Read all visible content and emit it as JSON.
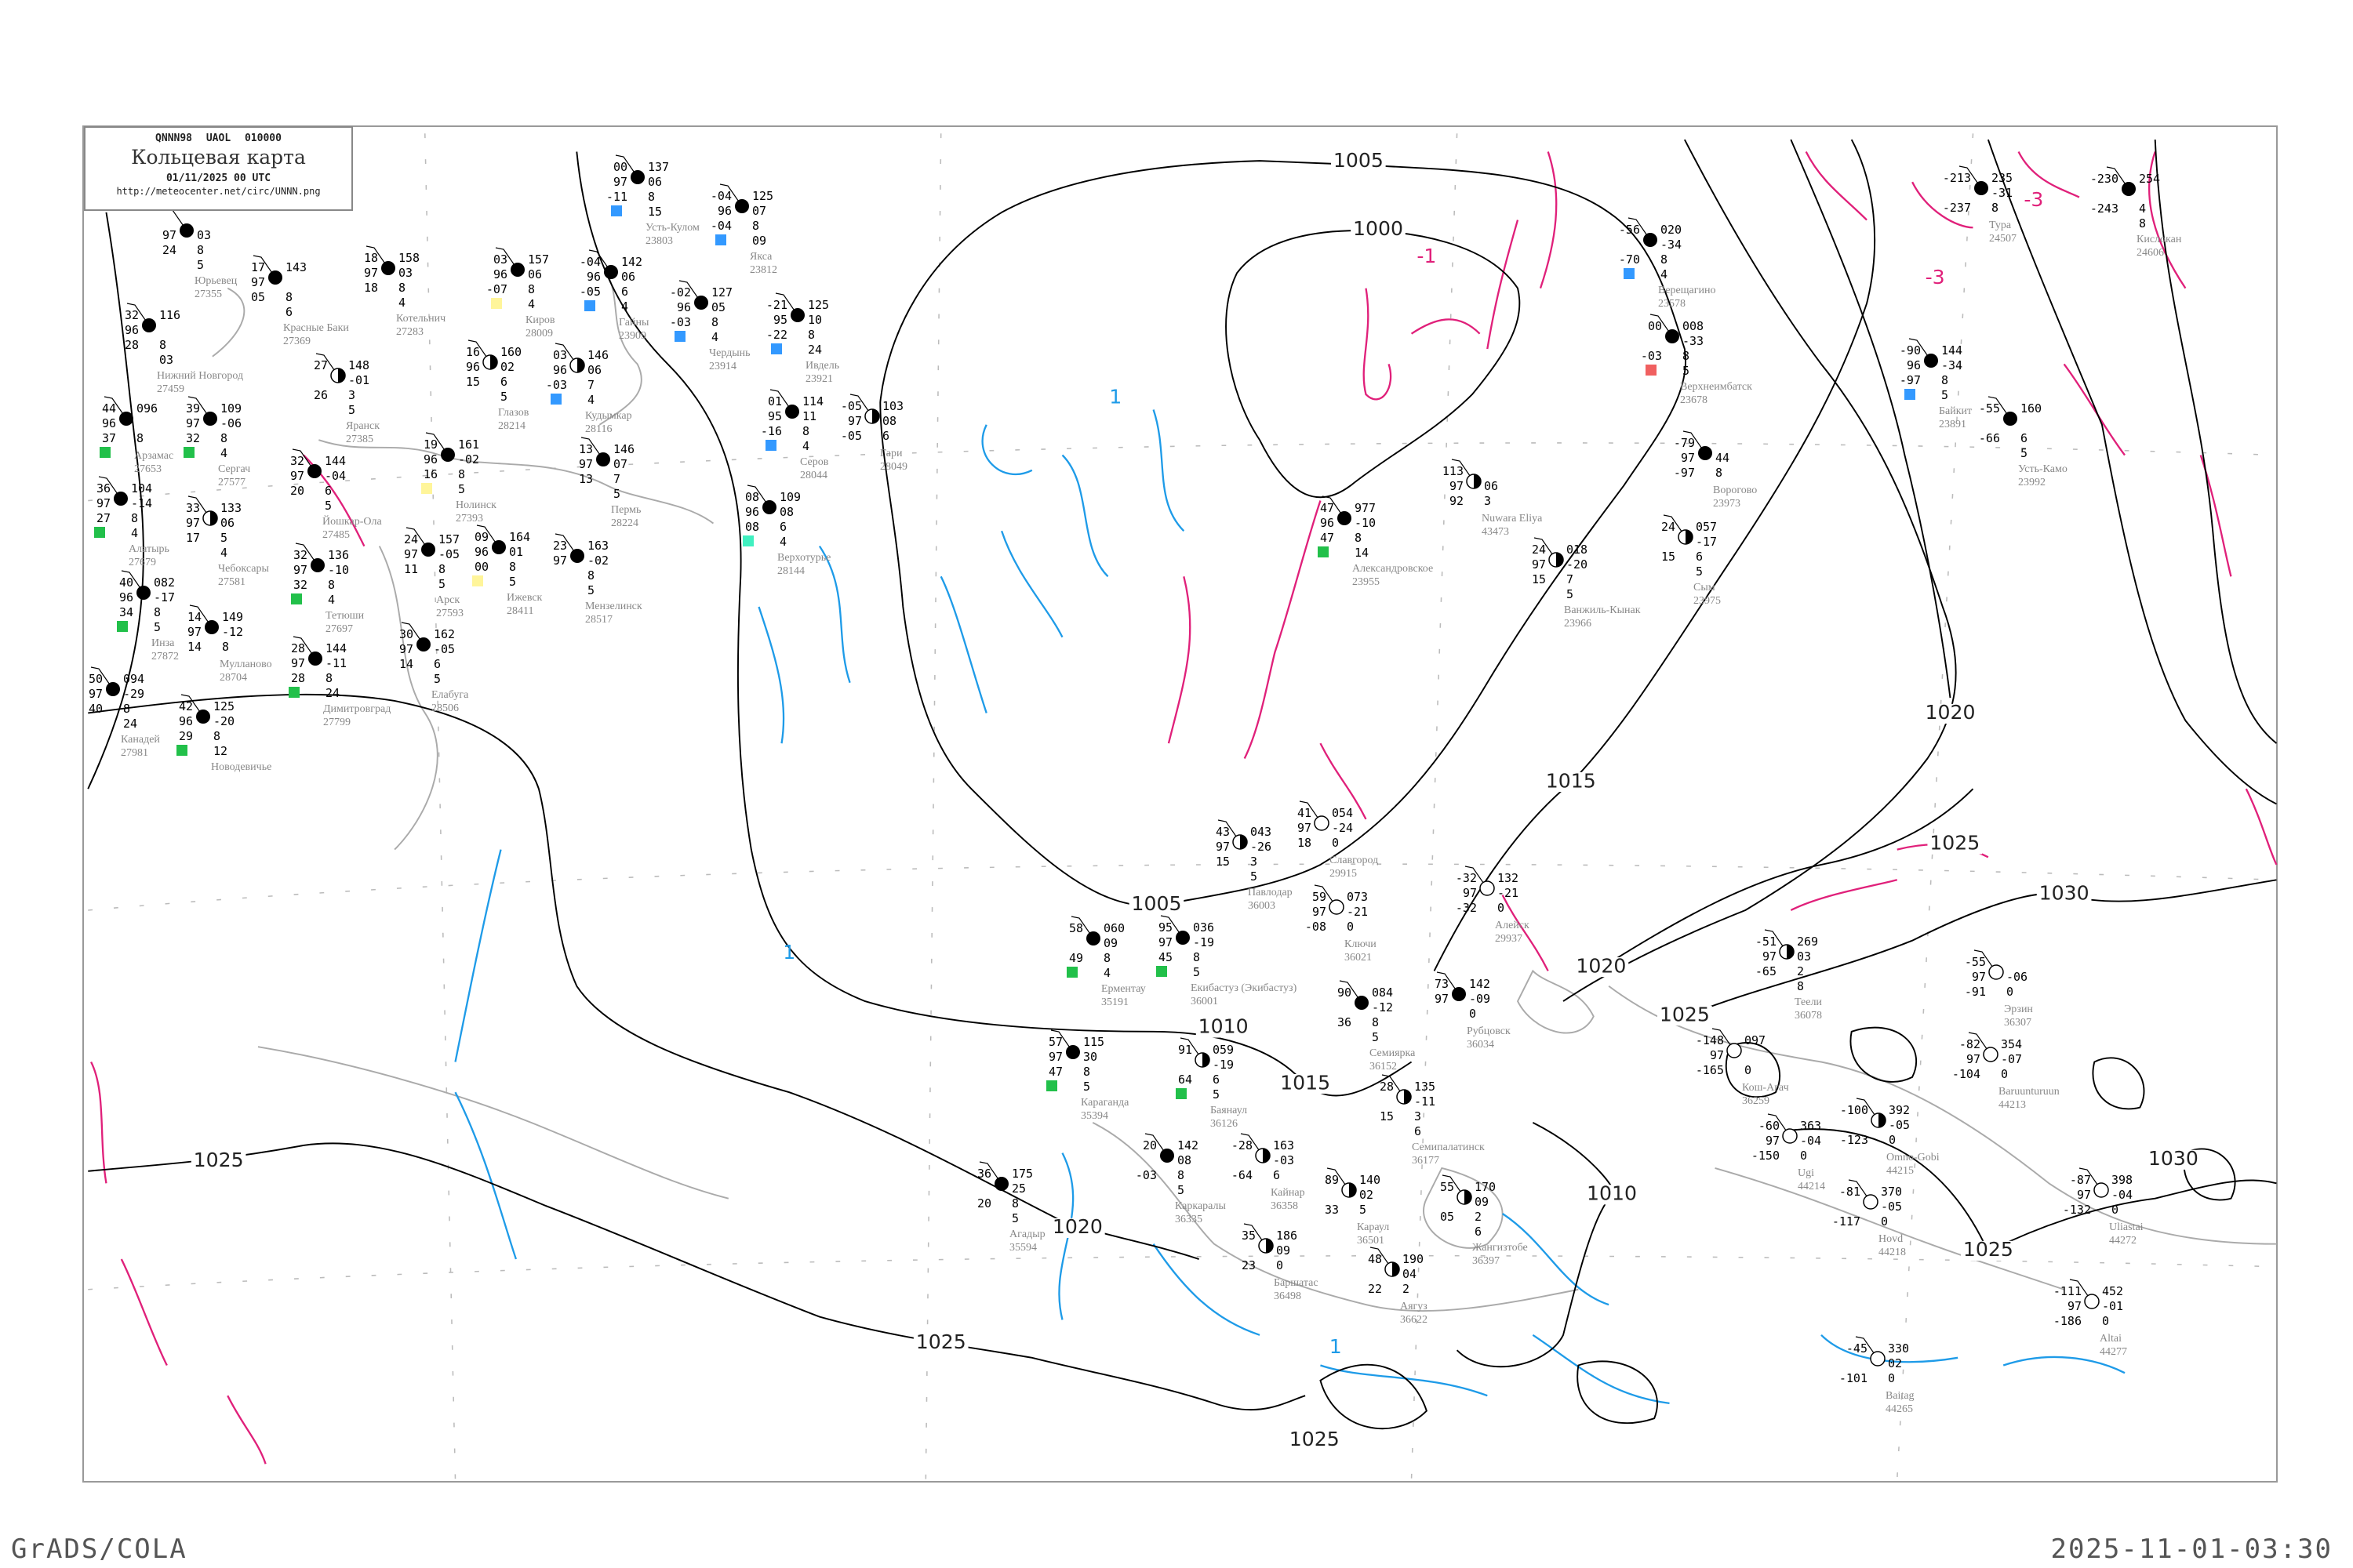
{
  "header": {
    "codes": "QNNN98 UAOL 010000",
    "title": "Кольцевая карта",
    "date": "01/11/2025 00 UTC",
    "url": "http://meteocenter.net/circ/UNNN.png"
  },
  "footer": {
    "left": "GrADS/COLA",
    "right": "2025-11-01-03:30"
  },
  "colors": {
    "isobar": "#000000",
    "isotherm_negative": "#e0207a",
    "isotherm_positive": "#1e9be8",
    "coast_river": "#aaaaaa",
    "frame": "#999999",
    "marker_snow": "#3399ff",
    "marker_rain": "#22c04a",
    "marker_drizzle": "#fff59a",
    "marker_severe": "#f06060",
    "marker_other": "#40f0c0"
  },
  "isobar_labels": [
    "1005",
    "1000",
    "1005",
    "1010",
    "1015",
    "1015",
    "1020",
    "1020",
    "1025",
    "1030",
    "1025",
    "1010",
    "1025",
    "1030",
    "1020",
    "1025",
    "1025",
    "1025"
  ],
  "isotherm_labels": [
    "-1",
    "-3",
    "-3",
    "1",
    "1",
    "1"
  ],
  "stations": [
    {
      "name": "Усть-Кулом",
      "id": "23803",
      "t": "00",
      "vis": "97",
      "td": "-11",
      "p": "137",
      "tend": "06",
      "e1": "8",
      "e2": "15",
      "cover": "full",
      "marker": "#3399ff"
    },
    {
      "name": "Якса",
      "id": "23812",
      "t": "-04",
      "vis": "96",
      "td": "-04",
      "p": "125",
      "tend": "07",
      "e1": "8",
      "e2": "09",
      "cover": "full",
      "marker": "#3399ff"
    },
    {
      "name": "Гайны",
      "id": "23909",
      "t": "-04",
      "vis": "96",
      "td": "-05",
      "p": "142",
      "tend": "06",
      "e1": "6",
      "e2": "4",
      "cover": "full",
      "marker": "#3399ff"
    },
    {
      "name": "Чердынь",
      "id": "23914",
      "t": "-02",
      "vis": "96",
      "td": "-03",
      "p": "127",
      "tend": "05",
      "e1": "8",
      "e2": "4",
      "cover": "full",
      "marker": "#3399ff"
    },
    {
      "name": "Ивдель",
      "id": "23921",
      "t": "-21",
      "vis": "95",
      "td": "-22",
      "p": "125",
      "tend": "10",
      "e1": "8",
      "e2": "24",
      "cover": "full",
      "marker": "#3399ff"
    },
    {
      "name": "Кудымкар",
      "id": "28116",
      "t": "03",
      "vis": "96",
      "td": "-03",
      "p": "146",
      "tend": "06",
      "e1": "7",
      "e2": "4",
      "cover": "half",
      "marker": "#3399ff"
    },
    {
      "name": "Серов",
      "id": "28044",
      "t": "01",
      "vis": "95",
      "td": "-16",
      "p": "114",
      "tend": "11",
      "e1": "8",
      "e2": "4",
      "cover": "full",
      "marker": "#3399ff"
    },
    {
      "name": "Гари",
      "id": "28049",
      "t": "-05",
      "vis": "97",
      "td": "-05",
      "p": "103",
      "tend": "08",
      "e1": "6",
      "e2": "",
      "cover": "half",
      "marker": ""
    },
    {
      "name": "Пермь",
      "id": "28224",
      "t": "13",
      "vis": "97",
      "td": "13",
      "p": "146",
      "tend": "07",
      "e1": "7",
      "e2": "5",
      "cover": "full",
      "marker": ""
    },
    {
      "name": "Верхотурье",
      "id": "28144",
      "t": "08",
      "vis": "96",
      "td": "08",
      "p": "109",
      "tend": "08",
      "e1": "6",
      "e2": "4",
      "cover": "full",
      "marker": "#40f0c0"
    },
    {
      "name": "Юрьевец",
      "id": "27355",
      "t": "",
      "vis": "97",
      "td": "24",
      "p": "",
      "tend": "03",
      "e1": "8",
      "e2": "5",
      "cover": "full",
      "marker": ""
    },
    {
      "name": "Красные Баки",
      "id": "27369",
      "t": "17",
      "vis": "97",
      "td": "05",
      "p": "143",
      "tend": "",
      "e1": "8",
      "e2": "6",
      "cover": "full",
      "marker": ""
    },
    {
      "name": "Нижний Новгород",
      "id": "27459",
      "t": "32",
      "vis": "96",
      "td": "28",
      "p": "116",
      "tend": "",
      "e1": "8",
      "e2": "03",
      "cover": "full",
      "marker": ""
    },
    {
      "name": "Арзамас",
      "id": "27653",
      "t": "44",
      "vis": "96",
      "td": "37",
      "p": "096",
      "tend": "",
      "e1": "8",
      "e2": "",
      "cover": "full",
      "marker": "#22c04a"
    },
    {
      "name": "Сергач",
      "id": "27577",
      "t": "39",
      "vis": "97",
      "td": "32",
      "p": "109",
      "tend": "-06",
      "e1": "8",
      "e2": "4",
      "cover": "full",
      "marker": "#22c04a"
    },
    {
      "name": "Котельнич",
      "id": "27283",
      "t": "18",
      "vis": "97",
      "td": "18",
      "p": "158",
      "tend": "03",
      "e1": "8",
      "e2": "4",
      "cover": "full",
      "marker": ""
    },
    {
      "name": "Киров",
      "id": "28009",
      "t": "03",
      "vis": "96",
      "td": "-07",
      "p": "157",
      "tend": "06",
      "e1": "8",
      "e2": "4",
      "cover": "full",
      "marker": "#fff59a"
    },
    {
      "name": "Глазов",
      "id": "28214",
      "t": "16",
      "vis": "96",
      "td": "15",
      "p": "160",
      "tend": "02",
      "e1": "6",
      "e2": "5",
      "cover": "half",
      "marker": ""
    },
    {
      "name": "Яранск",
      "id": "27385",
      "t": "27",
      "vis": "",
      "td": "26",
      "p": "148",
      "tend": "-01",
      "e1": "3",
      "e2": "5",
      "cover": "half",
      "marker": ""
    },
    {
      "name": "Йошкар-Ола",
      "id": "27485",
      "t": "32",
      "vis": "97",
      "td": "20",
      "p": "144",
      "tend": "-04",
      "e1": "6",
      "e2": "5",
      "cover": "full",
      "marker": ""
    },
    {
      "name": "Чебоксары",
      "id": "27581",
      "t": "33",
      "vis": "97",
      "td": "17",
      "p": "133",
      "tend": "06",
      "e1": "5",
      "e2": "4",
      "cover": "half",
      "marker": ""
    },
    {
      "name": "Нолинск",
      "id": "27393",
      "t": "19",
      "vis": "96",
      "td": "16",
      "p": "161",
      "tend": "-02",
      "e1": "8",
      "e2": "5",
      "cover": "full",
      "marker": "#fff59a"
    },
    {
      "name": "Арск",
      "id": "27593",
      "t": "24",
      "vis": "97",
      "td": "11",
      "p": "157",
      "tend": "-05",
      "e1": "8",
      "e2": "5",
      "cover": "full",
      "marker": ""
    },
    {
      "name": "Ижевск",
      "id": "28411",
      "t": "09",
      "vis": "96",
      "td": "00",
      "p": "164",
      "tend": "01",
      "e1": "8",
      "e2": "5",
      "cover": "full",
      "marker": "#fff59a"
    },
    {
      "name": "Алатырь",
      "id": "27679",
      "t": "36",
      "vis": "97",
      "td": "27",
      "p": "104",
      "tend": "-14",
      "e1": "8",
      "e2": "4",
      "cover": "full",
      "marker": "#22c04a"
    },
    {
      "name": "Инза",
      "id": "27872",
      "t": "40",
      "vis": "96",
      "td": "34",
      "p": "082",
      "tend": "-17",
      "e1": "8",
      "e2": "5",
      "cover": "full",
      "marker": "#22c04a"
    },
    {
      "name": "Тетюши",
      "id": "27697",
      "t": "32",
      "vis": "97",
      "td": "32",
      "p": "136",
      "tend": "-10",
      "e1": "8",
      "e2": "4",
      "cover": "full",
      "marker": "#22c04a"
    },
    {
      "name": "Елабуга",
      "id": "28506",
      "t": "30",
      "vis": "97",
      "td": "14",
      "p": "162",
      "tend": "-05",
      "e1": "6",
      "e2": "5",
      "cover": "full",
      "marker": ""
    },
    {
      "name": "Мензелинск",
      "id": "28517",
      "t": "23",
      "vis": "97",
      "td": "",
      "p": "163",
      "tend": "-02",
      "e1": "8",
      "e2": "5",
      "cover": "full",
      "marker": ""
    },
    {
      "name": "Димитровград",
      "id": "27799",
      "t": "28",
      "vis": "97",
      "td": "28",
      "p": "144",
      "tend": "-11",
      "e1": "8",
      "e2": "24",
      "cover": "full",
      "marker": "#22c04a"
    },
    {
      "name": "Мулланово",
      "id": "28704",
      "t": "14",
      "vis": "97",
      "td": "14",
      "p": "149",
      "tend": "-12",
      "e1": "8",
      "e2": "",
      "cover": "full",
      "marker": ""
    },
    {
      "name": "Канадей",
      "id": "27981",
      "t": "50",
      "vis": "97",
      "td": "40",
      "p": "094",
      "tend": "-29",
      "e1": "8",
      "e2": "24",
      "cover": "full",
      "marker": ""
    },
    {
      "name": "Новодевичье",
      "id": "",
      "t": "42",
      "vis": "96",
      "td": "29",
      "p": "125",
      "tend": "-20",
      "e1": "8",
      "e2": "12",
      "cover": "full",
      "marker": "#22c04a"
    },
    {
      "name": "Верещагино",
      "id": "23578",
      "t": "-56",
      "vis": "",
      "td": "-70",
      "p": "020",
      "tend": "-34",
      "e1": "8",
      "e2": "4",
      "cover": "full",
      "marker": "#3399ff"
    },
    {
      "name": "Верхнеимбатск",
      "id": "23678",
      "t": "00",
      "vis": "",
      "td": "-03",
      "p": "008",
      "tend": "-33",
      "e1": "8",
      "e2": "5",
      "cover": "full",
      "marker": "#f06060"
    },
    {
      "name": "Александровское",
      "id": "23955",
      "t": "47",
      "vis": "96",
      "td": "47",
      "p": "977",
      "tend": "-10",
      "e1": "8",
      "e2": "14",
      "cover": "full",
      "marker": "#22c04a"
    },
    {
      "name": "Nuwara Eliya",
      "id": "43473",
      "t": "113",
      "vis": "97",
      "td": "92",
      "p": "",
      "tend": "06",
      "e1": "3",
      "e2": "",
      "cover": "half",
      "marker": ""
    },
    {
      "name": "Ванжиль-Кынак",
      "id": "23966",
      "t": "24",
      "vis": "97",
      "td": "15",
      "p": "018",
      "tend": "-20",
      "e1": "7",
      "e2": "5",
      "cover": "half",
      "marker": ""
    },
    {
      "name": "Сым",
      "id": "23975",
      "t": "24",
      "vis": "",
      "td": "15",
      "p": "057",
      "tend": "-17",
      "e1": "6",
      "e2": "5",
      "cover": "half",
      "marker": ""
    },
    {
      "name": "Ворогово",
      "id": "23973",
      "t": "-79",
      "vis": "97",
      "td": "-97",
      "p": "",
      "tend": "44",
      "e1": "8",
      "e2": "",
      "cover": "full",
      "marker": ""
    },
    {
      "name": "Тура",
      "id": "24507",
      "t": "-213",
      "vis": "",
      "td": "-237",
      "p": "235",
      "tend": "-31",
      "e1": "8",
      "e2": "",
      "cover": "full",
      "marker": ""
    },
    {
      "name": "Кислокан",
      "id": "24606",
      "t": "-230",
      "vis": "",
      "td": "-243",
      "p": "254",
      "tend": "",
      "e1": "4",
      "e2": "8",
      "cover": "full",
      "marker": ""
    },
    {
      "name": "Байкит",
      "id": "23891",
      "t": "-90",
      "vis": "96",
      "td": "-97",
      "p": "144",
      "tend": "-34",
      "e1": "8",
      "e2": "5",
      "cover": "full",
      "marker": "#3399ff"
    },
    {
      "name": "Усть-Камо",
      "id": "23992",
      "t": "-55",
      "vis": "",
      "td": "-66",
      "p": "160",
      "tend": "",
      "e1": "6",
      "e2": "5",
      "cover": "full",
      "marker": ""
    },
    {
      "name": "Ерментау",
      "id": "35191",
      "t": "58",
      "vis": "",
      "td": "49",
      "p": "060",
      "tend": "09",
      "e1": "8",
      "e2": "4",
      "cover": "full",
      "marker": "#22c04a"
    },
    {
      "name": "Екибастуз (Экибастуз)",
      "id": "36001",
      "t": "95",
      "vis": "97",
      "td": "45",
      "p": "036",
      "tend": "-19",
      "e1": "8",
      "e2": "5",
      "cover": "full",
      "marker": "#22c04a"
    },
    {
      "name": "Павлодар",
      "id": "36003",
      "t": "43",
      "vis": "97",
      "td": "15",
      "p": "043",
      "tend": "-26",
      "e1": "3",
      "e2": "5",
      "cover": "half",
      "marker": ""
    },
    {
      "name": "Ключи",
      "id": "36021",
      "t": "59",
      "vis": "97",
      "td": "-08",
      "p": "073",
      "tend": "-21",
      "e1": "0",
      "e2": "",
      "cover": "empty",
      "marker": ""
    },
    {
      "name": "Славгород",
      "id": "29915",
      "t": "41",
      "vis": "97",
      "td": "18",
      "p": "054",
      "tend": "-24",
      "e1": "0",
      "e2": "",
      "cover": "empty",
      "marker": ""
    },
    {
      "name": "Баянаул",
      "id": "36126",
      "t": "91",
      "vis": "",
      "td": "64",
      "p": "059",
      "tend": "-19",
      "e1": "6",
      "e2": "5",
      "cover": "half",
      "marker": "#22c04a"
    },
    {
      "name": "Семиярка",
      "id": "36152",
      "t": "90",
      "vis": "",
      "td": "36",
      "p": "084",
      "tend": "-12",
      "e1": "8",
      "e2": "5",
      "cover": "full",
      "marker": ""
    },
    {
      "name": "Караганда",
      "id": "35394",
      "t": "57",
      "vis": "97",
      "td": "47",
      "p": "115",
      "tend": "30",
      "e1": "8",
      "e2": "5",
      "cover": "full",
      "marker": "#22c04a"
    },
    {
      "name": "Каркаралы",
      "id": "36335",
      "t": "20",
      "vis": "",
      "td": "-03",
      "p": "142",
      "tend": "08",
      "e1": "8",
      "e2": "5",
      "cover": "full",
      "marker": ""
    },
    {
      "name": "Кайнар",
      "id": "36358",
      "t": "-28",
      "vis": "",
      "td": "-64",
      "p": "163",
      "tend": "-03",
      "e1": "6",
      "e2": "",
      "cover": "half",
      "marker": ""
    },
    {
      "name": "Семипалатинск",
      "id": "36177",
      "t": "28",
      "vis": "",
      "td": "15",
      "p": "135",
      "tend": "-11",
      "e1": "3",
      "e2": "6",
      "cover": "half",
      "marker": ""
    },
    {
      "name": "Рубцовск",
      "id": "36034",
      "t": "73",
      "vis": "97",
      "td": "",
      "p": "142",
      "tend": "-09",
      "e1": "0",
      "e2": "",
      "cover": "full",
      "marker": ""
    },
    {
      "name": "Алейск",
      "id": "29937",
      "t": "-32",
      "vis": "97",
      "td": "-32",
      "p": "132",
      "tend": "-21",
      "e1": "0",
      "e2": "",
      "cover": "empty",
      "marker": ""
    },
    {
      "name": "Караул",
      "id": "36501",
      "t": "89",
      "vis": "",
      "td": "33",
      "p": "140",
      "tend": "02",
      "e1": "5",
      "e2": "",
      "cover": "half",
      "marker": ""
    },
    {
      "name": "Аягуз",
      "id": "36622",
      "t": "48",
      "vis": "",
      "td": "22",
      "p": "190",
      "tend": "04",
      "e1": "2",
      "e2": "",
      "cover": "half",
      "marker": ""
    },
    {
      "name": "Баршатас",
      "id": "36498",
      "t": "35",
      "vis": "",
      "td": "23",
      "p": "186",
      "tend": "09",
      "e1": "0",
      "e2": "",
      "cover": "half",
      "marker": ""
    },
    {
      "name": "Жангизтобе",
      "id": "36397",
      "t": "55",
      "vis": "",
      "td": "05",
      "p": "170",
      "tend": "09",
      "e1": "2",
      "e2": "6",
      "cover": "half",
      "marker": ""
    },
    {
      "name": "Агадыр",
      "id": "35594",
      "t": "36",
      "vis": "",
      "td": "20",
      "p": "175",
      "tend": "25",
      "e1": "8",
      "e2": "5",
      "cover": "full",
      "marker": ""
    },
    {
      "name": "Кош-Агач",
      "id": "36259",
      "t": "-148",
      "vis": "97",
      "td": "-165",
      "p": "097",
      "tend": "",
      "e1": "0",
      "e2": "",
      "cover": "empty",
      "marker": ""
    },
    {
      "name": "Ugi",
      "id": "44214",
      "t": "-60",
      "vis": "97",
      "td": "-150",
      "p": "363",
      "tend": "-04",
      "e1": "0",
      "e2": "",
      "cover": "empty",
      "marker": ""
    },
    {
      "name": "Omno-Gobi",
      "id": "44215",
      "t": "-100",
      "vis": "",
      "td": "-123",
      "p": "392",
      "tend": "-05",
      "e1": "0",
      "e2": "",
      "cover": "half",
      "marker": ""
    },
    {
      "name": "Hovd",
      "id": "44218",
      "t": "-81",
      "vis": "",
      "td": "-117",
      "p": "370",
      "tend": "-05",
      "e1": "0",
      "e2": "",
      "cover": "empty",
      "marker": ""
    },
    {
      "name": "Baruunturuun",
      "id": "44213",
      "t": "-82",
      "vis": "97",
      "td": "-104",
      "p": "354",
      "tend": "-07",
      "e1": "0",
      "e2": "",
      "cover": "empty",
      "marker": ""
    },
    {
      "name": "Теели",
      "id": "36078",
      "t": "-51",
      "vis": "97",
      "td": "-65",
      "p": "269",
      "tend": "03",
      "e1": "2",
      "e2": "8",
      "cover": "half",
      "marker": ""
    },
    {
      "name": "Эрзин",
      "id": "36307",
      "t": "-55",
      "vis": "97",
      "td": "-91",
      "p": "",
      "tend": "-06",
      "e1": "0",
      "e2": "",
      "cover": "empty",
      "marker": ""
    },
    {
      "name": "Uliastai",
      "id": "44272",
      "t": "-87",
      "vis": "97",
      "td": "-132",
      "p": "398",
      "tend": "-04",
      "e1": "0",
      "e2": "",
      "cover": "empty",
      "marker": ""
    },
    {
      "name": "Altai",
      "id": "44277",
      "t": "-111",
      "vis": "97",
      "td": "-186",
      "p": "452",
      "tend": "-01",
      "e1": "0",
      "e2": "",
      "cover": "empty",
      "marker": ""
    },
    {
      "name": "Baitag",
      "id": "44265",
      "t": "-45",
      "vis": "",
      "td": "-101",
      "p": "330",
      "tend": "02",
      "e1": "0",
      "e2": "",
      "cover": "empty",
      "marker": ""
    }
  ]
}
